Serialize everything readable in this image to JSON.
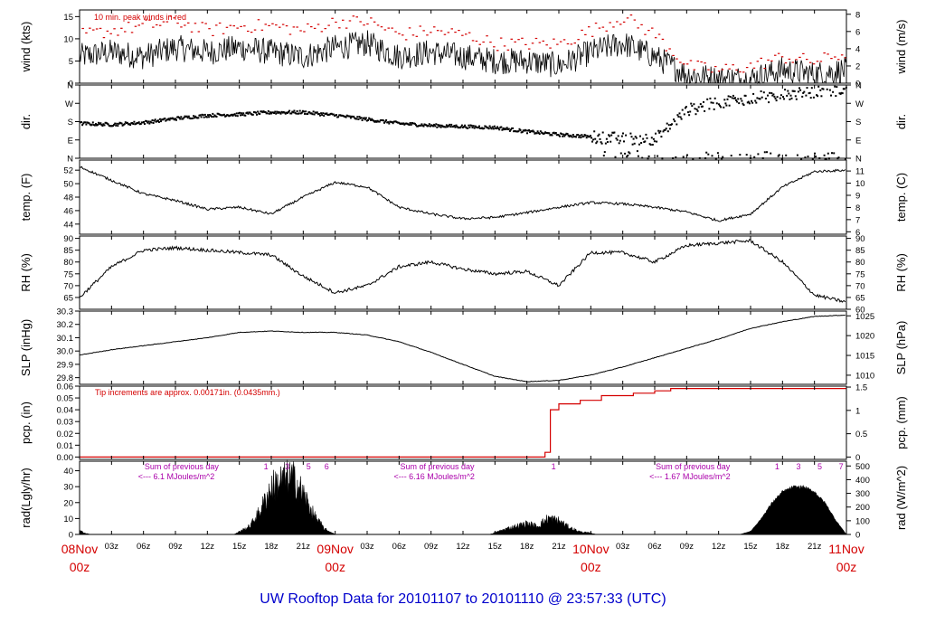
{
  "title": "UW Rooftop Data for 20101107  to  20101110 @ 23:57:33  (UTC)",
  "colors": {
    "accent": "#d40000",
    "title": "#0000cc",
    "annotation": "#aa00aa",
    "trace": "#000000"
  },
  "time_axis": {
    "hour_ticks": [
      "03z",
      "06z",
      "09z",
      "12z",
      "15z",
      "18z",
      "21z"
    ],
    "day_labels": [
      {
        "day": "08Nov",
        "hour": "00z"
      },
      {
        "day": "09Nov",
        "hour": "00z"
      },
      {
        "day": "10Nov",
        "hour": "00z"
      },
      {
        "day": "11Nov",
        "hour": "00z"
      }
    ]
  },
  "chart_data": [
    {
      "id": "wind",
      "type": "line",
      "ylabel": "wind (kts)",
      "ylabel_right": "wind (m/s)",
      "ylim": [
        0,
        16.5
      ],
      "yticks": [
        0,
        5,
        10,
        15
      ],
      "right_ylim": [
        0,
        8.5
      ],
      "right_yticks": [
        0,
        2,
        4,
        6,
        8
      ],
      "annotation": "10 min. peak winds in red",
      "series": [
        {
          "name": "wind",
          "x": [
            0,
            3,
            6,
            9,
            12,
            15,
            18,
            21,
            24,
            27,
            30,
            33,
            36,
            39,
            42,
            45,
            48,
            51,
            54,
            57,
            60,
            63,
            66,
            69,
            72
          ],
          "values": [
            6,
            7,
            6,
            8,
            7,
            8,
            7,
            6,
            8,
            9,
            6,
            7,
            6,
            5,
            5,
            4,
            7,
            9,
            6,
            2,
            1,
            1,
            3,
            2,
            3
          ]
        },
        {
          "name": "10 min. peak winds",
          "x": [
            0,
            3,
            6,
            9,
            12,
            15,
            18,
            21,
            24,
            27,
            30,
            33,
            36,
            39,
            42,
            45,
            48,
            51,
            54,
            57,
            60,
            63,
            66,
            69,
            72
          ],
          "values": [
            11,
            12,
            13,
            14,
            12,
            13,
            13,
            12,
            14,
            14,
            11,
            12,
            11,
            9,
            9,
            9,
            12,
            15,
            11,
            4,
            3,
            4,
            6,
            5,
            7
          ]
        }
      ]
    },
    {
      "id": "dir",
      "type": "scatter",
      "ylabel": "dir.",
      "ylabel_right": "dir.",
      "ylim": [
        0,
        360
      ],
      "tick_labels": [
        "N",
        "E",
        "S",
        "W",
        "N"
      ],
      "series": [
        {
          "name": "direction",
          "x": [
            0,
            3,
            6,
            9,
            12,
            15,
            18,
            21,
            24,
            27,
            30,
            33,
            36,
            39,
            42,
            45,
            48,
            51,
            54,
            57,
            60,
            63,
            66,
            69,
            72
          ],
          "values": [
            175,
            170,
            180,
            200,
            215,
            220,
            230,
            230,
            215,
            195,
            175,
            165,
            160,
            155,
            135,
            120,
            110,
            100,
            100,
            240,
            280,
            300,
            315,
            330,
            345
          ]
        }
      ]
    },
    {
      "id": "temp",
      "type": "line",
      "ylabel": "temp. (F)",
      "ylabel_right": "temp. (C)",
      "ylim": [
        42.5,
        53.5
      ],
      "yticks": [
        44,
        46,
        48,
        50,
        52
      ],
      "right_ylim": [
        5.8,
        11.9
      ],
      "right_yticks": [
        6,
        7,
        8,
        9,
        10,
        11
      ],
      "series": [
        {
          "name": "temp",
          "x": [
            0,
            3,
            6,
            9,
            12,
            15,
            18,
            21,
            24,
            27,
            30,
            33,
            36,
            39,
            42,
            45,
            48,
            51,
            54,
            57,
            60,
            63,
            66,
            69,
            72
          ],
          "values": [
            52.5,
            50.5,
            48.5,
            47.5,
            46.2,
            46.5,
            45.5,
            48,
            50.2,
            49.5,
            46.5,
            45.5,
            44.8,
            45,
            45.7,
            46.5,
            47.2,
            47,
            46.5,
            45.8,
            44.5,
            45.5,
            49.5,
            51.8,
            52
          ]
        }
      ]
    },
    {
      "id": "rh",
      "type": "line",
      "ylabel": "RH (%)",
      "ylabel_right": "RH (%)",
      "ylim": [
        60,
        91
      ],
      "yticks": [
        65,
        70,
        75,
        80,
        85,
        90
      ],
      "right_yticks": [
        60,
        65,
        70,
        75,
        80,
        85,
        90
      ],
      "series": [
        {
          "name": "RH",
          "x": [
            0,
            3,
            6,
            9,
            12,
            15,
            18,
            21,
            24,
            27,
            30,
            33,
            36,
            39,
            42,
            45,
            48,
            51,
            54,
            57,
            60,
            63,
            66,
            69,
            72
          ],
          "values": [
            65,
            78,
            85,
            86,
            85,
            84,
            83,
            74,
            67,
            70,
            78,
            80,
            77,
            75,
            76,
            70,
            84,
            84,
            80,
            87,
            88,
            89,
            80,
            66,
            63
          ]
        }
      ]
    },
    {
      "id": "slp",
      "type": "line",
      "ylabel": "SLP (inHg)",
      "ylabel_right": "SLP (hPa)",
      "ylim": [
        29.75,
        30.3
      ],
      "yticks": [
        29.8,
        29.9,
        30.0,
        30.1,
        30.2,
        30.3
      ],
      "right_ylim": [
        1007.7,
        1026.2
      ],
      "right_yticks": [
        1010,
        1015,
        1020,
        1025
      ],
      "series": [
        {
          "name": "SLP",
          "x": [
            0,
            3,
            6,
            9,
            12,
            15,
            18,
            21,
            24,
            27,
            30,
            33,
            36,
            39,
            42,
            45,
            48,
            51,
            54,
            57,
            60,
            63,
            66,
            69,
            72
          ],
          "values": [
            29.97,
            30.01,
            30.04,
            30.07,
            30.1,
            30.14,
            30.15,
            30.14,
            30.14,
            30.12,
            30.07,
            29.99,
            29.9,
            29.81,
            29.77,
            29.78,
            29.82,
            29.88,
            29.95,
            30.02,
            30.09,
            30.17,
            30.22,
            30.26,
            30.27
          ]
        }
      ]
    },
    {
      "id": "pcp",
      "type": "line",
      "ylabel": "pcp. (in)",
      "ylabel_right": "pcp. (mm)",
      "ylim": [
        -0.002,
        0.06
      ],
      "yticks": [
        0.0,
        0.01,
        0.02,
        0.03,
        0.04,
        0.05,
        0.06
      ],
      "tick_labels": [
        "0.00",
        "0.01",
        "0.02",
        "0.03",
        "0.04",
        "0.05",
        "0.06"
      ],
      "right_ylim": [
        -0.05,
        1.52
      ],
      "right_yticks": [
        0,
        0.5,
        1,
        1.5
      ],
      "annotation": "Tip increments are approx. 0.00171in. (0.0435mm.)",
      "series": [
        {
          "name": "precipitation",
          "x": [
            0,
            43,
            43.7,
            44.2,
            45,
            47,
            49,
            52,
            54,
            55.5,
            72
          ],
          "values": [
            0,
            0,
            0.004,
            0.04,
            0.045,
            0.048,
            0.052,
            0.054,
            0.056,
            0.058,
            0.058
          ]
        }
      ]
    },
    {
      "id": "rad",
      "type": "area",
      "ylabel": "rad(Lgly/hr)",
      "ylabel_right": "rad (W/m^2)",
      "ylim": [
        0,
        46
      ],
      "yticks": [
        0,
        10,
        20,
        30,
        40
      ],
      "right_ylim": [
        0,
        535
      ],
      "right_yticks": [
        0,
        100,
        200,
        300,
        400,
        500
      ],
      "series": [
        {
          "name": "radiation",
          "x": [
            0,
            0.5,
            1,
            14.5,
            16,
            17,
            18,
            19,
            20,
            21,
            22,
            23,
            24,
            38.5,
            40,
            42,
            43,
            44,
            45,
            46,
            47,
            48,
            48.5,
            62,
            63,
            64,
            65,
            66,
            67,
            68,
            69,
            70,
            71,
            72
          ],
          "values": [
            3,
            1,
            0,
            0,
            6,
            18,
            35,
            40,
            42,
            30,
            14,
            4,
            0,
            0,
            4,
            8,
            6,
            12,
            10,
            5,
            2,
            1,
            0,
            0,
            2,
            10,
            20,
            27,
            30,
            30,
            27,
            20,
            9,
            0
          ]
        }
      ],
      "day_sums": [
        {
          "label": "Sum of previous day",
          "value": "<--- 6.1 MJoules/m^2",
          "x": 5.5
        },
        {
          "label": "Sum of previous day",
          "value": "<--- 6.16 MJoules/m^2",
          "x": 29.5
        },
        {
          "label": "Sum of previous day",
          "value": "<--- 1.67 MJoules/m^2",
          "x": 53.5
        }
      ],
      "hour_marks": [
        {
          "text": "1",
          "x": 17.5
        },
        {
          "text": "3",
          "x": 19.5
        },
        {
          "text": "5",
          "x": 21.5
        },
        {
          "text": "6",
          "x": 23.2
        },
        {
          "text": "1",
          "x": 44.5
        },
        {
          "text": "1",
          "x": 65.5
        },
        {
          "text": "3",
          "x": 67.5
        },
        {
          "text": "5",
          "x": 69.5
        },
        {
          "text": "7",
          "x": 71.5
        }
      ]
    }
  ]
}
